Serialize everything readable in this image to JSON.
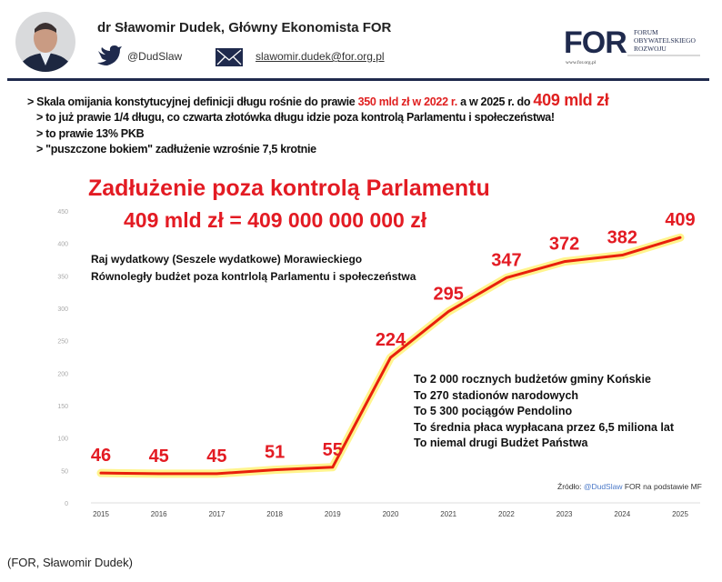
{
  "header": {
    "author": "dr Sławomir Dudek, Główny Ekonomista FOR",
    "twitter_handle": "@DudSlaw",
    "email": "slawomir.dudek@for.org.pl",
    "logo": {
      "abbr": "FOR",
      "line1": "FORUM",
      "line2": "OBYWATELSKIEGO",
      "line3": "ROZWOJU",
      "url": "www.for.org.pl"
    },
    "icons": [
      "avatar-photo",
      "twitter-bird-icon",
      "envelope-icon"
    ]
  },
  "bullets": {
    "line1_pre": "> Skala omijania konstytucyjnej definicji długu rośnie do prawie ",
    "line1_red": "350 mld zł w 2022 r.",
    "line1_mid": " a w 2025 r. do ",
    "line1_big": "409 mld zł",
    "line2": "> to już prawie 1/4 długu, co czwarta złotówka długu idzie poza kontrolą Parlamentu i społeczeństwa!",
    "line3": "> to prawie 13% PKB",
    "line4": "> \"puszczone bokiem\" zadłużenie wzrośnie 7,5 krotnie"
  },
  "notes": {
    "line1": "Raj wydatkowy (Seszele wydatkowe) Morawieckiego",
    "line2": "Równoległy budżet poza kontrlolą Parlamentu i społeczeństwa"
  },
  "facts": [
    "To 2 000 rocznych budżetów gminy Końskie",
    "To 270 stadionów narodowych",
    "To 5 300 pociągów Pendolino",
    "To średnia płaca wypłacana przez 6,5 miliona lat",
    "To niemal drugi Budżet Państwa"
  ],
  "source": {
    "prefix": "Źródło: ",
    "handle": "@DudSlaw",
    "suffix": " FOR na podstawie MF"
  },
  "caption": "(FOR, Sławomir Dudek)",
  "chart_data": {
    "type": "line",
    "title": "Zadłużenie poza kontrolą Parlamentu",
    "subtitle": "409 mld zł = 409 000 000 000 zł",
    "categories": [
      "2015",
      "2016",
      "2017",
      "2018",
      "2019",
      "2020",
      "2021",
      "2022",
      "2023",
      "2024",
      "2025"
    ],
    "values": [
      46,
      45,
      45,
      51,
      55,
      224,
      295,
      347,
      372,
      382,
      409
    ],
    "data_labels": [
      "46",
      "45",
      "45",
      "51",
      "55",
      "224",
      "295",
      "347",
      "372",
      "382",
      "409"
    ],
    "ylim": [
      0,
      450
    ],
    "yticks": [
      "0",
      "50",
      "100",
      "150",
      "200",
      "250",
      "300",
      "350",
      "400",
      "450"
    ],
    "grid": false,
    "line_color": "#e8200c",
    "glow_color": "#fff27a",
    "label_color": "#e31b23"
  }
}
